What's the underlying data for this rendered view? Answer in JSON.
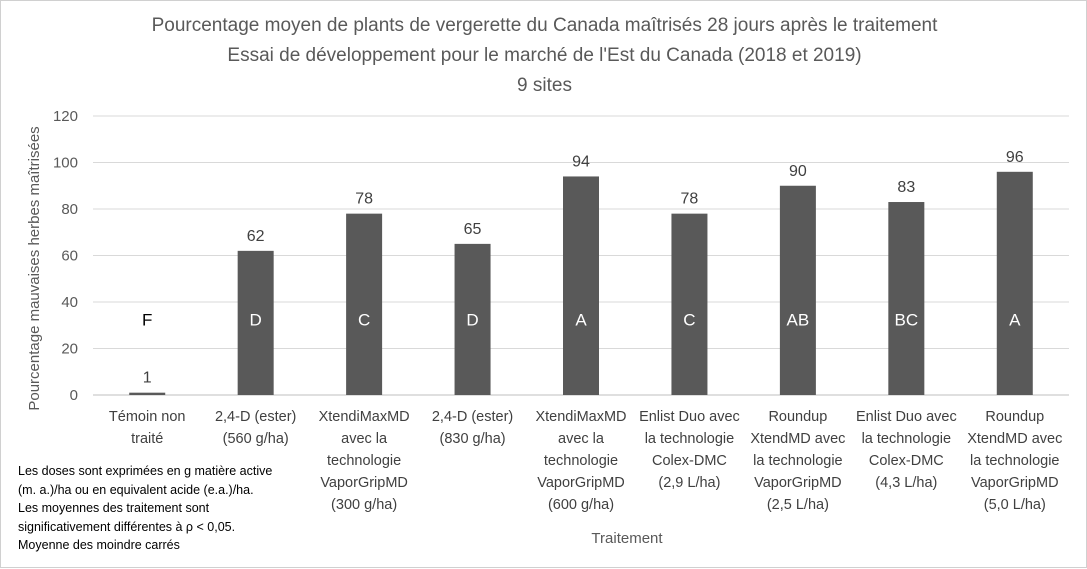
{
  "chart_data": {
    "type": "bar",
    "title": [
      "Pourcentage moyen de plants de vergerette du Canada maîtrisés 28 jours après le traitement",
      "Essai de développement pour le marché de l'Est du Canada (2018 et 2019)",
      "9 sites"
    ],
    "xlabel": "Traitement",
    "ylabel": "Pourcentage mauvaises herbes maîtrisées",
    "ylim": [
      0,
      120
    ],
    "yticks": [
      0,
      20,
      40,
      60,
      80,
      100,
      120
    ],
    "grid": true,
    "bar_color": "#595959",
    "categories": [
      [
        "Témoin non",
        "traité"
      ],
      [
        "2,4-D (ester)",
        "(560 g/ha)"
      ],
      [
        "XtendiMaxMD",
        "avec la",
        "technologie",
        "VaporGripMD",
        "(300 g/ha)"
      ],
      [
        "2,4-D (ester)",
        "(830 g/ha)"
      ],
      [
        "XtendiMaxMD",
        "avec la",
        "technologie",
        "VaporGripMD",
        "(600 g/ha)"
      ],
      [
        "Enlist Duo avec",
        "la technologie",
        "Colex-DMC",
        "(2,9 L/ha)"
      ],
      [
        "Roundup",
        "XtendMD avec",
        "la technologie",
        "VaporGripMD",
        "(2,5 L/ha)"
      ],
      [
        "Enlist Duo avec",
        "la technologie",
        "Colex-DMC",
        "(4,3 L/ha)"
      ],
      [
        "Roundup",
        "XtendMD avec",
        "la technologie",
        "VaporGripMD",
        "(5,0 L/ha)"
      ]
    ],
    "values": [
      1,
      62,
      78,
      65,
      94,
      78,
      90,
      83,
      96
    ],
    "value_labels": [
      "1",
      "62",
      "78",
      "65",
      "94",
      "78",
      "90",
      "83",
      "96"
    ],
    "significance_letters": [
      "F",
      "D",
      "C",
      "D",
      "A",
      "C",
      "AB",
      "BC",
      "A"
    ]
  },
  "notes": [
    "Les doses sont exprimées en g matière active",
    "(m. a.)/ha ou en equivalent acide (e.a.)/ha.",
    "Les moyennes des traitement sont",
    "significativement différentes à ρ < 0,05.",
    "Moyenne des moindre carrés"
  ]
}
